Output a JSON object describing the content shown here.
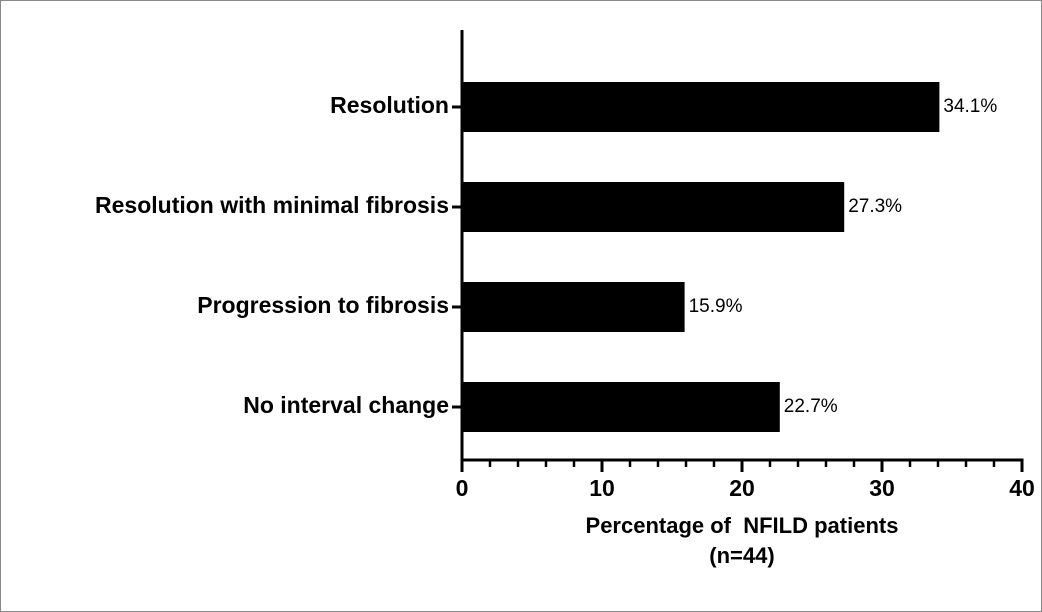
{
  "chart_data": {
    "type": "hbar",
    "categories": [
      "Resolution",
      "Resolution with minimal fibrosis",
      "Progression to fibrosis",
      "No interval change"
    ],
    "values": [
      34.1,
      27.3,
      15.9,
      22.7
    ],
    "value_labels": [
      "34.1%",
      "27.3%",
      "15.9%",
      "22.7%"
    ],
    "color": "#000000",
    "xlim": [
      0,
      40
    ],
    "xticks": [
      0,
      10,
      20,
      30,
      40
    ],
    "xminorticks": [
      2,
      4,
      6,
      8,
      12,
      14,
      16,
      18,
      22,
      24,
      26,
      28,
      32,
      34,
      36,
      38
    ],
    "xlabel": [
      "Percentage of  NFILD patients",
      "(n=44)"
    ],
    "grid": false
  }
}
